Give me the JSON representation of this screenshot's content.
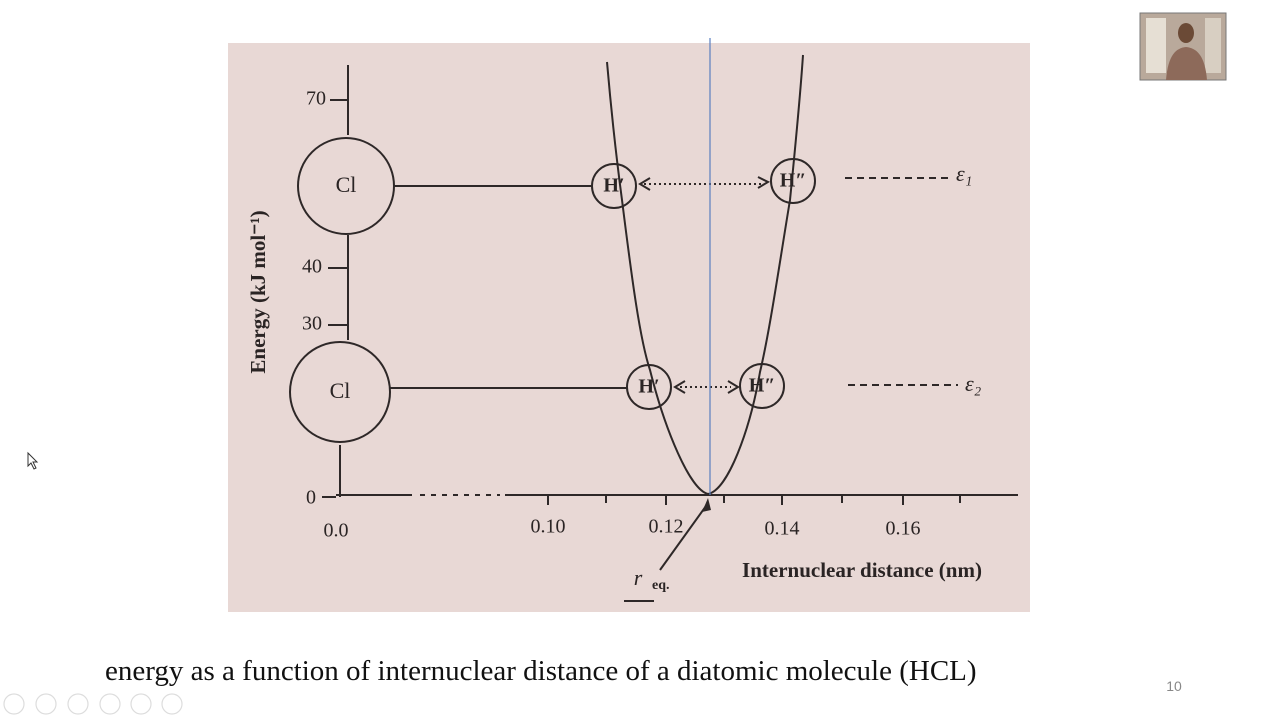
{
  "figure": {
    "y_axis": {
      "label": "Energy (kJ mol⁻¹)",
      "ticks": [
        "70",
        "40",
        "30",
        "0"
      ]
    },
    "x_axis": {
      "label": "Internuclear distance (nm)",
      "ticks": [
        "0.0",
        "0.10",
        "0.12",
        "0.14",
        "0.16"
      ]
    },
    "equilibrium_label": "r",
    "equilibrium_subscript": "eq.",
    "atoms": [
      "Cl",
      "Cl",
      "H′",
      "H″",
      "H′",
      "H″"
    ],
    "levels": [
      "ε₁",
      "ε₂"
    ]
  },
  "caption": "energy as a function of internuclear distance of a diatomic molecule (HCL)",
  "slide_number": "10"
}
